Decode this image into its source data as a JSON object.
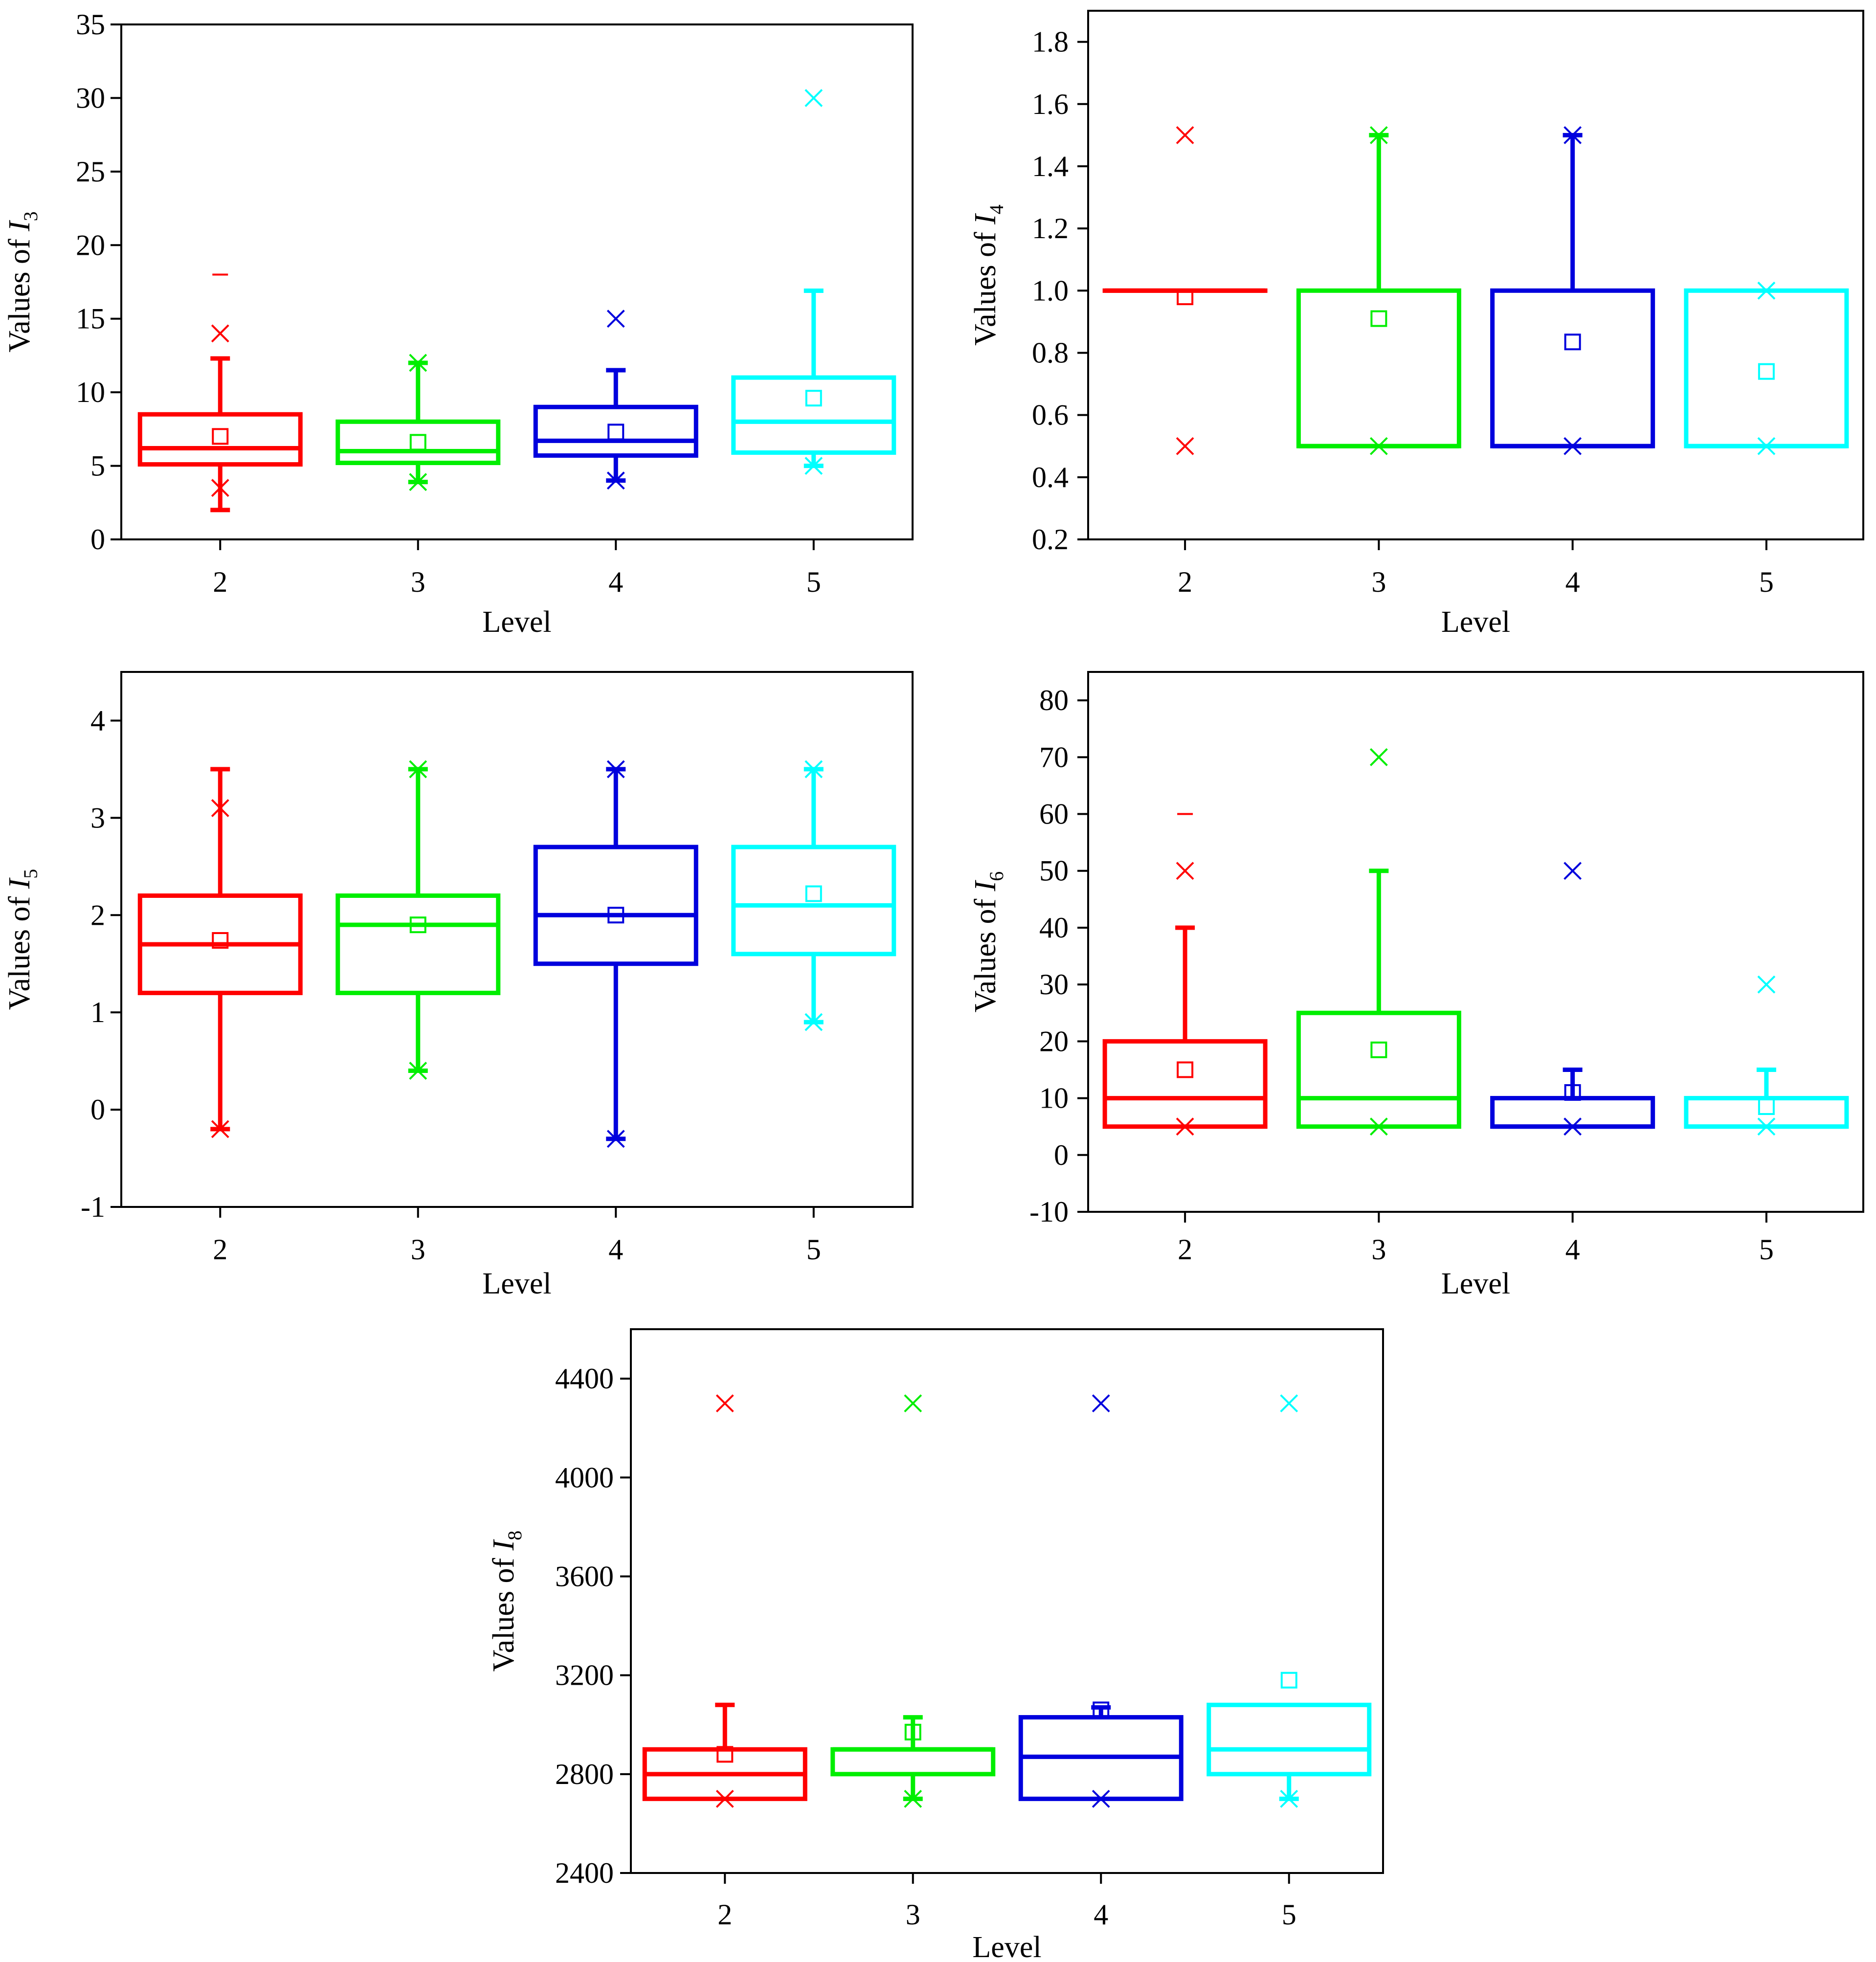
{
  "colors": {
    "level_2": "#ff0000",
    "level_3": "#00ee00",
    "level_4": "#0000dd",
    "level_5": "#00ffff",
    "axis": "#000000"
  },
  "chart_data": [
    {
      "id": "I3",
      "type": "box",
      "title": "",
      "xlabel": "Level",
      "ylabel_prefix": "Values of ",
      "ylabel_var": "I",
      "ylabel_sub": "3",
      "categories": [
        "2",
        "3",
        "4",
        "5"
      ],
      "ylim": [
        0,
        35
      ],
      "yticks": [
        0,
        5,
        10,
        15,
        20,
        25,
        30,
        35
      ],
      "ytick_labels": [
        "0",
        "5",
        "10",
        "15",
        "20",
        "25",
        "30",
        "35"
      ],
      "boxes": [
        {
          "level": "2",
          "q1": 5.1,
          "median": 6.2,
          "q3": 8.5,
          "whisker_low": 2,
          "whisker_high": 12.3,
          "mean": 7.0,
          "min": 3.5,
          "max": 14,
          "outliers": [
            18
          ]
        },
        {
          "level": "3",
          "q1": 5.2,
          "median": 6.0,
          "q3": 8.0,
          "whisker_low": 3.9,
          "whisker_high": 12,
          "mean": 6.6,
          "min": 3.9,
          "max": 12,
          "outliers": []
        },
        {
          "level": "4",
          "q1": 5.7,
          "median": 6.7,
          "q3": 9.0,
          "whisker_low": 4.0,
          "whisker_high": 11.5,
          "mean": 7.3,
          "min": 4.0,
          "max": 15,
          "outliers": []
        },
        {
          "level": "5",
          "q1": 5.9,
          "median": 8.0,
          "q3": 11.0,
          "whisker_low": 5.0,
          "whisker_high": 16.9,
          "mean": 9.6,
          "min": 5.0,
          "max": 30,
          "outliers": []
        }
      ]
    },
    {
      "id": "I4",
      "type": "box",
      "title": "",
      "xlabel": "Level",
      "ylabel_prefix": "Values of ",
      "ylabel_var": "I",
      "ylabel_sub": "4",
      "categories": [
        "2",
        "3",
        "4",
        "5"
      ],
      "ylim": [
        0.2,
        1.9
      ],
      "yticks": [
        0.2,
        0.4,
        0.6,
        0.8,
        1.0,
        1.2,
        1.4,
        1.6,
        1.8
      ],
      "ytick_labels": [
        "0.2",
        "0.4",
        "0.6",
        "0.8",
        "1.0",
        "1.2",
        "1.4",
        "1.6",
        "1.8"
      ],
      "boxes": [
        {
          "level": "2",
          "q1": 1.0,
          "median": 1.0,
          "q3": 1.0,
          "whisker_low": 1.0,
          "whisker_high": 1.0,
          "mean": 0.98,
          "min": 0.5,
          "max": 1.5,
          "outliers": []
        },
        {
          "level": "3",
          "q1": 0.5,
          "median": 0.5,
          "q3": 1.0,
          "whisker_low": 0.5,
          "whisker_high": 1.5,
          "mean": 0.91,
          "min": 0.5,
          "max": 1.5,
          "outliers": []
        },
        {
          "level": "4",
          "q1": 0.5,
          "median": 0.5,
          "q3": 1.0,
          "whisker_low": 0.5,
          "whisker_high": 1.5,
          "mean": 0.835,
          "min": 0.5,
          "max": 1.5,
          "outliers": []
        },
        {
          "level": "5",
          "q1": 0.5,
          "median": 0.5,
          "q3": 1.0,
          "whisker_low": 0.5,
          "whisker_high": 1.0,
          "mean": 0.74,
          "min": 0.5,
          "max": 1.0,
          "outliers": []
        }
      ]
    },
    {
      "id": "I5",
      "type": "box",
      "title": "",
      "xlabel": "Level",
      "ylabel_prefix": "Values of ",
      "ylabel_var": "I",
      "ylabel_sub": "5",
      "categories": [
        "2",
        "3",
        "4",
        "5"
      ],
      "ylim": [
        -1,
        4.5
      ],
      "yticks": [
        -1,
        0,
        1,
        2,
        3,
        4
      ],
      "ytick_labels": [
        "-1",
        "0",
        "1",
        "2",
        "3",
        "4"
      ],
      "boxes": [
        {
          "level": "2",
          "q1": 1.2,
          "median": 1.7,
          "q3": 2.2,
          "whisker_low": -0.2,
          "whisker_high": 3.5,
          "mean": 1.74,
          "min": -0.2,
          "max": 3.1,
          "outliers": []
        },
        {
          "level": "3",
          "q1": 1.2,
          "median": 1.9,
          "q3": 2.2,
          "whisker_low": 0.4,
          "whisker_high": 3.5,
          "mean": 1.9,
          "min": 0.4,
          "max": 3.5,
          "outliers": []
        },
        {
          "level": "4",
          "q1": 1.5,
          "median": 2.0,
          "q3": 2.7,
          "whisker_low": -0.3,
          "whisker_high": 3.5,
          "mean": 2.0,
          "min": -0.3,
          "max": 3.5,
          "outliers": []
        },
        {
          "level": "5",
          "q1": 1.6,
          "median": 2.1,
          "q3": 2.7,
          "whisker_low": 0.9,
          "whisker_high": 3.5,
          "mean": 2.22,
          "min": 0.9,
          "max": 3.5,
          "outliers": []
        }
      ]
    },
    {
      "id": "I6",
      "type": "box",
      "title": "",
      "xlabel": "Level",
      "ylabel_prefix": "Values of ",
      "ylabel_var": "I",
      "ylabel_sub": "6",
      "categories": [
        "2",
        "3",
        "4",
        "5"
      ],
      "ylim": [
        -10,
        85
      ],
      "yticks": [
        -10,
        0,
        10,
        20,
        30,
        40,
        50,
        60,
        70,
        80
      ],
      "ytick_labels": [
        "-10",
        "0",
        "10",
        "20",
        "30",
        "40",
        "50",
        "60",
        "70",
        "80"
      ],
      "boxes": [
        {
          "level": "2",
          "q1": 5,
          "median": 10,
          "q3": 20,
          "whisker_low": 5,
          "whisker_high": 40,
          "mean": 15,
          "min": 5,
          "max": 50,
          "outliers": [
            60
          ]
        },
        {
          "level": "3",
          "q1": 5,
          "median": 10,
          "q3": 25,
          "whisker_low": 5,
          "whisker_high": 50,
          "mean": 18.5,
          "min": 5,
          "max": 70,
          "outliers": []
        },
        {
          "level": "4",
          "q1": 5,
          "median": 5,
          "q3": 10,
          "whisker_low": 5,
          "whisker_high": 15,
          "mean": 11,
          "min": 5,
          "max": 50,
          "outliers": []
        },
        {
          "level": "5",
          "q1": 5,
          "median": 5,
          "q3": 10,
          "whisker_low": 5,
          "whisker_high": 15,
          "mean": 8.5,
          "min": 5,
          "max": 30,
          "outliers": []
        }
      ]
    },
    {
      "id": "I8",
      "type": "box",
      "title": "",
      "xlabel": "Level",
      "ylabel_prefix": "Values of ",
      "ylabel_var": "I",
      "ylabel_sub": "8",
      "categories": [
        "2",
        "3",
        "4",
        "5"
      ],
      "ylim": [
        2400,
        4600
      ],
      "yticks": [
        2400,
        2800,
        3200,
        3600,
        4000,
        4400
      ],
      "ytick_labels": [
        "2400",
        "2800",
        "3200",
        "3600",
        "4000",
        "4400"
      ],
      "boxes": [
        {
          "level": "2",
          "q1": 2700,
          "median": 2800,
          "q3": 2900,
          "whisker_low": 2700,
          "whisker_high": 3080,
          "mean": 2880,
          "min": 2700,
          "max": 4300,
          "outliers": []
        },
        {
          "level": "3",
          "q1": 2800,
          "median": 2900,
          "q3": 2900,
          "whisker_low": 2700,
          "whisker_high": 3030,
          "mean": 2970,
          "min": 2700,
          "max": 4300,
          "outliers": []
        },
        {
          "level": "4",
          "q1": 2700,
          "median": 2870,
          "q3": 3030,
          "whisker_low": 2700,
          "whisker_high": 3070,
          "mean": 3060,
          "min": 2700,
          "max": 4300,
          "outliers": []
        },
        {
          "level": "5",
          "q1": 2800,
          "median": 2900,
          "q3": 3080,
          "whisker_low": 2700,
          "whisker_high": 3080,
          "mean": 3180,
          "min": 2700,
          "max": 4300,
          "outliers": []
        }
      ]
    }
  ]
}
